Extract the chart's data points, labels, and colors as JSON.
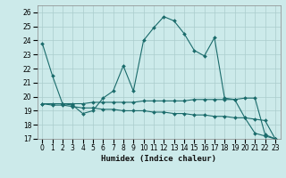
{
  "title": "",
  "xlabel": "Humidex (Indice chaleur)",
  "ylabel": "",
  "bg_color": "#cceaea",
  "grid_color": "#aacccc",
  "line_color": "#1a6b6b",
  "xlim": [
    -0.5,
    23.5
  ],
  "ylim": [
    17,
    26.5
  ],
  "yticks": [
    17,
    18,
    19,
    20,
    21,
    22,
    23,
    24,
    25,
    26
  ],
  "xticks": [
    0,
    1,
    2,
    3,
    4,
    5,
    6,
    7,
    8,
    9,
    10,
    11,
    12,
    13,
    14,
    15,
    16,
    17,
    18,
    19,
    20,
    21,
    22,
    23
  ],
  "series": [
    [
      23.8,
      21.5,
      19.5,
      19.4,
      18.8,
      19.0,
      19.9,
      20.4,
      22.2,
      20.4,
      24.0,
      24.9,
      25.7,
      25.4,
      24.5,
      23.3,
      22.9,
      24.2,
      19.9,
      19.8,
      18.5,
      17.4,
      17.2,
      17.0
    ],
    [
      19.5,
      19.4,
      19.4,
      19.3,
      19.2,
      19.2,
      19.1,
      19.1,
      19.0,
      19.0,
      19.0,
      18.9,
      18.9,
      18.8,
      18.8,
      18.7,
      18.7,
      18.6,
      18.6,
      18.5,
      18.5,
      18.4,
      18.3,
      17.0
    ],
    [
      19.5,
      19.5,
      19.5,
      19.5,
      19.5,
      19.6,
      19.6,
      19.6,
      19.6,
      19.6,
      19.7,
      19.7,
      19.7,
      19.7,
      19.7,
      19.8,
      19.8,
      19.8,
      19.8,
      19.8,
      19.9,
      19.9,
      17.3,
      17.0
    ]
  ],
  "xlabel_fontsize": 6.5,
  "tick_fontsize": 5.5
}
